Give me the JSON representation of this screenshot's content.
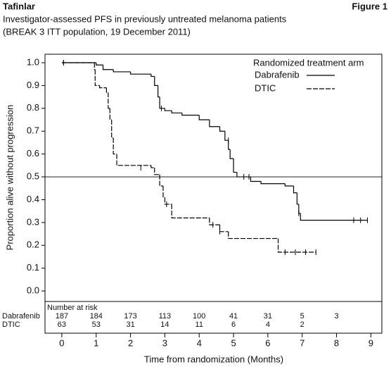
{
  "chart_data": {
    "type": "km",
    "title": "Tafinlar",
    "figure_label": "Figure 1",
    "subtitle_lines": [
      "Investigator-assessed PFS in previously untreated melanoma patients",
      "(BREAK 3 ITT population, 19 December 2011)"
    ],
    "x_label": "Time from randomization (Months)",
    "y_label": "Proportion alive without progression",
    "xlim": [
      -0.49,
      9.32
    ],
    "ylim": [
      -0.046,
      1.037
    ],
    "xticks": [
      0,
      1,
      2,
      3,
      4,
      5,
      6,
      7,
      8,
      9
    ],
    "yticks": [
      {
        "value": 1.0,
        "label": "1.0"
      },
      {
        "value": 0.9,
        "label": "0.9"
      },
      {
        "value": 0.8,
        "label": "0.8"
      },
      {
        "value": 0.7,
        "label": "0.7"
      },
      {
        "value": 0.6,
        "label": "0.6"
      },
      {
        "value": 0.5,
        "label": "0.5"
      },
      {
        "value": 0.4,
        "label": "0.4"
      },
      {
        "value": 0.3,
        "label": "0.3"
      },
      {
        "value": 0.2,
        "label": "0.2"
      },
      {
        "value": 0.1,
        "label": "0.1"
      },
      {
        "value": 0.0,
        "label": "0.0"
      }
    ],
    "reference_line": 0.5,
    "legend_title": "Randomized treatment arm",
    "series": [
      {
        "name": "Dabrafenib",
        "color": "#000000",
        "line_style": "solid",
        "x": [
          0,
          1.0,
          1.2,
          1.5,
          2.0,
          2.6,
          2.7,
          2.8,
          2.85,
          3.0,
          3.2,
          3.5,
          4.0,
          4.3,
          4.6,
          4.75,
          4.85,
          4.9,
          5.0,
          5.1,
          5.5,
          5.8,
          6.5,
          6.75,
          6.85,
          6.9,
          6.95
        ],
        "values": [
          1.0,
          0.99,
          0.97,
          0.96,
          0.95,
          0.94,
          0.9,
          0.85,
          0.8,
          0.79,
          0.78,
          0.77,
          0.75,
          0.72,
          0.7,
          0.66,
          0.62,
          0.58,
          0.52,
          0.5,
          0.48,
          0.47,
          0.46,
          0.43,
          0.38,
          0.34,
          0.31
        ],
        "end_x": 8.9,
        "censored": [
          {
            "x": 0.05,
            "y": 1.0
          },
          {
            "x": 2.9,
            "y": 0.8
          },
          {
            "x": 4.85,
            "y": 0.66
          },
          {
            "x": 5.3,
            "y": 0.5
          },
          {
            "x": 5.45,
            "y": 0.5
          },
          {
            "x": 6.9,
            "y": 0.34
          },
          {
            "x": 8.5,
            "y": 0.31
          },
          {
            "x": 8.7,
            "y": 0.31
          },
          {
            "x": 8.9,
            "y": 0.31
          }
        ]
      },
      {
        "name": "DTIC",
        "color": "#000000",
        "line_style": "dashed",
        "x": [
          0,
          0.95,
          0.97,
          1.1,
          1.3,
          1.35,
          1.4,
          1.45,
          1.5,
          1.6,
          2.6,
          2.7,
          2.85,
          2.95,
          3.0,
          3.2,
          4.3,
          4.6,
          4.85,
          6.3
        ],
        "values": [
          1.0,
          0.97,
          0.9,
          0.89,
          0.87,
          0.8,
          0.75,
          0.67,
          0.6,
          0.55,
          0.54,
          0.51,
          0.46,
          0.41,
          0.38,
          0.32,
          0.29,
          0.26,
          0.23,
          0.17
        ],
        "end_x": 7.4,
        "censored": [
          {
            "x": 0.05,
            "y": 1.0
          },
          {
            "x": 2.3,
            "y": 0.54
          },
          {
            "x": 3.05,
            "y": 0.38
          },
          {
            "x": 4.4,
            "y": 0.29
          },
          {
            "x": 4.6,
            "y": 0.26
          },
          {
            "x": 6.5,
            "y": 0.17
          },
          {
            "x": 6.8,
            "y": 0.17
          },
          {
            "x": 7.1,
            "y": 0.17
          },
          {
            "x": 7.4,
            "y": 0.17
          }
        ]
      }
    ],
    "risk_table": {
      "header": "Number at risk",
      "rows": [
        {
          "name": "Dabrafenib",
          "values": [
            187,
            184,
            173,
            113,
            100,
            41,
            31,
            5,
            3
          ]
        },
        {
          "name": "DTIC",
          "values": [
            63,
            53,
            31,
            14,
            11,
            6,
            4,
            2
          ]
        }
      ]
    }
  }
}
